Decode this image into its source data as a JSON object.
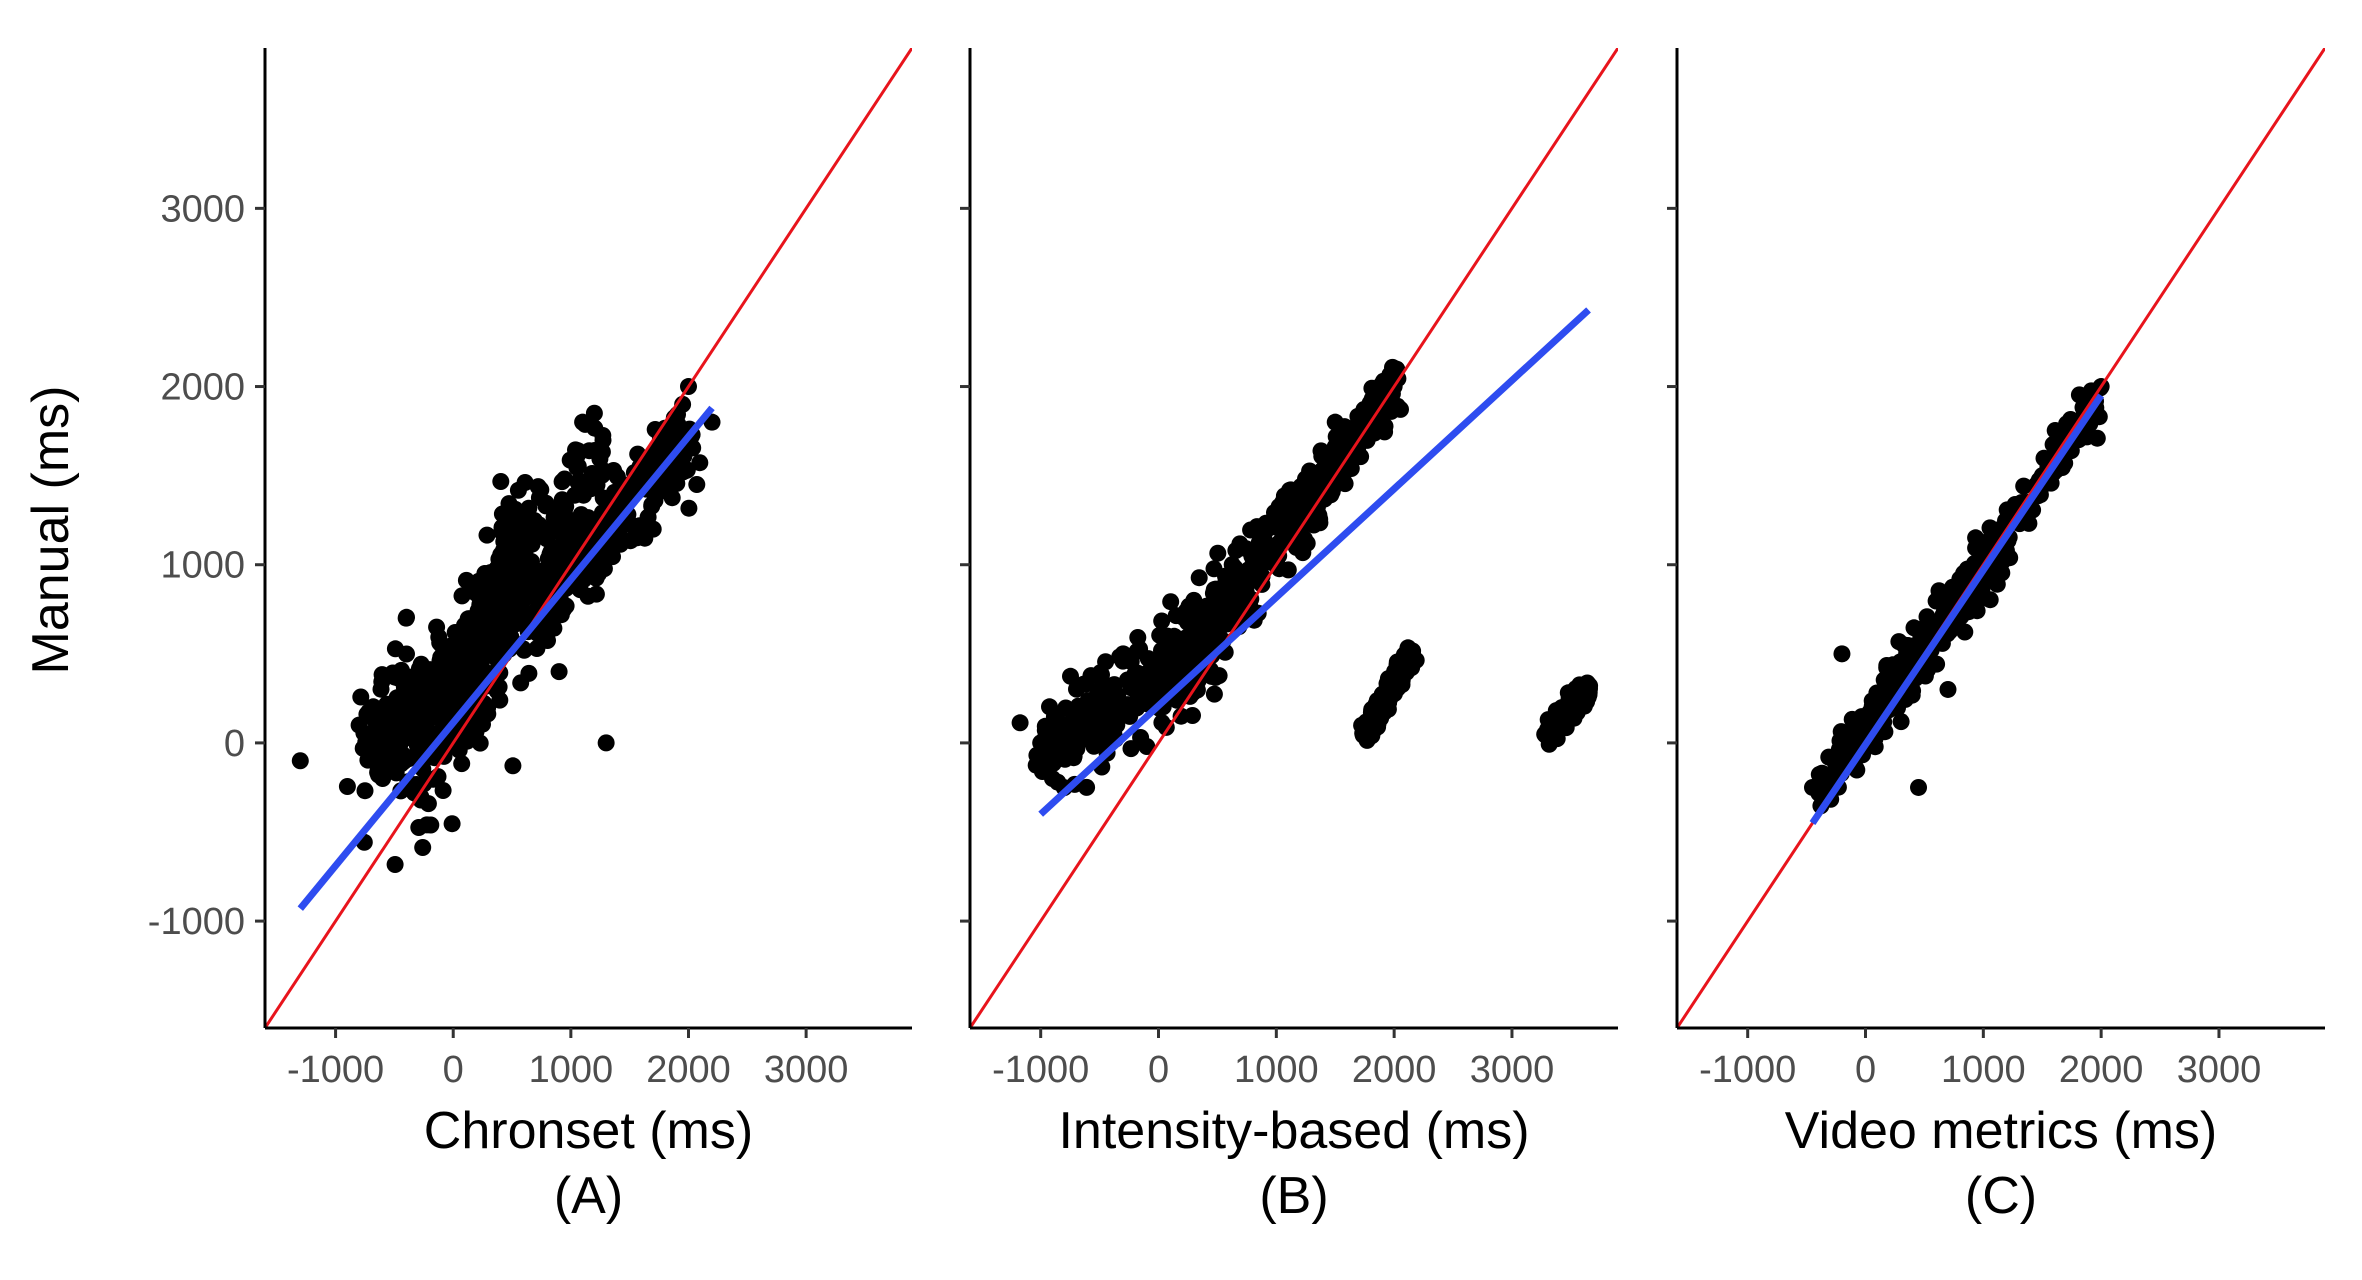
{
  "y_axis_label": "Manual (ms)",
  "colors": {
    "points": "#000000",
    "fit_line": "#2e4cf0",
    "identity_line": "#e8141c",
    "axis": "#000000",
    "tick_text": "#4d4d4d"
  },
  "chart_data": [
    {
      "type": "scatter",
      "panel": "(A)",
      "xlabel": "Chronset (ms)",
      "ylabel": "Manual (ms)",
      "xlim": [
        -1600,
        3900
      ],
      "ylim": [
        -1600,
        3900
      ],
      "xticks": [
        -1000,
        0,
        1000,
        2000,
        3000
      ],
      "yticks": [
        -1000,
        0,
        1000,
        2000,
        3000
      ],
      "xtick_labels": [
        "-1000",
        "0",
        "1000",
        "2000",
        "3000"
      ],
      "ytick_labels": [
        "-1000",
        "0",
        "1000",
        "2000",
        "3000"
      ],
      "identity_line": true,
      "fit_line": {
        "x": [
          -1300,
          2200
        ],
        "y": [
          -930,
          1880
        ]
      },
      "clusters": [
        {
          "x1": -350,
          "y1": -150,
          "x2": 1300,
          "y2": 1500,
          "spread": 220
        },
        {
          "x1": 0,
          "y1": 150,
          "x2": 600,
          "y2": 1200,
          "spread": 130
        },
        {
          "x1": 600,
          "y1": 700,
          "x2": 2000,
          "y2": 1700,
          "spread": 110
        },
        {
          "x1": -700,
          "y1": 0,
          "x2": 100,
          "y2": 400,
          "spread": 150
        }
      ],
      "points": [
        [
          -1300,
          -100
        ],
        [
          -800,
          100
        ],
        [
          -700,
          50
        ],
        [
          -600,
          -200
        ],
        [
          1300,
          0
        ],
        [
          2200,
          1800
        ],
        [
          2000,
          2000
        ],
        [
          1200,
          1850
        ],
        [
          1100,
          1800
        ],
        [
          900,
          400
        ],
        [
          -250,
          -230
        ],
        [
          -400,
          700
        ],
        [
          1500,
          1450
        ],
        [
          1950,
          1900
        ],
        [
          1700,
          1200
        ]
      ]
    },
    {
      "type": "scatter",
      "panel": "(B)",
      "xlabel": "Intensity-based (ms)",
      "ylabel": "Manual (ms)",
      "xlim": [
        -1600,
        3900
      ],
      "ylim": [
        -1600,
        3900
      ],
      "xticks": [
        -1000,
        0,
        1000,
        2000,
        3000
      ],
      "yticks": [
        -1000,
        0,
        1000,
        2000,
        3000
      ],
      "xtick_labels": [
        "-1000",
        "0",
        "1000",
        "2000",
        "3000"
      ],
      "ytick_labels": [],
      "identity_line": true,
      "fit_line": {
        "x": [
          -1000,
          3650
        ],
        "y": [
          -400,
          2430
        ]
      },
      "clusters": [
        {
          "x1": -1000,
          "y1": -100,
          "x2": 500,
          "y2": 600,
          "spread": 130
        },
        {
          "x1": 0,
          "y1": 300,
          "x2": 1300,
          "y2": 1400,
          "spread": 110
        },
        {
          "x1": 1100,
          "y1": 1200,
          "x2": 2000,
          "y2": 2000,
          "spread": 70
        },
        {
          "x1": 1750,
          "y1": 50,
          "x2": 2150,
          "y2": 500,
          "spread": 30
        },
        {
          "x1": 3300,
          "y1": 50,
          "x2": 3650,
          "y2": 300,
          "spread": 30
        }
      ],
      "points": [
        [
          -1000,
          0
        ],
        [
          -900,
          -200
        ],
        [
          1700,
          1800
        ],
        [
          1900,
          1950
        ],
        [
          2000,
          2000
        ],
        [
          -300,
          500
        ],
        [
          300,
          800
        ],
        [
          1500,
          1800
        ]
      ]
    },
    {
      "type": "scatter",
      "panel": "(C)",
      "xlabel": "Video metrics (ms)",
      "ylabel": "Manual (ms)",
      "xlim": [
        -1600,
        3900
      ],
      "ylim": [
        -1600,
        3900
      ],
      "xticks": [
        -1000,
        0,
        1000,
        2000,
        3000
      ],
      "yticks": [
        -1000,
        0,
        1000,
        2000,
        3000
      ],
      "xtick_labels": [
        "-1000",
        "0",
        "1000",
        "2000",
        "3000"
      ],
      "ytick_labels": [],
      "identity_line": true,
      "fit_line": {
        "x": [
          -450,
          2000
        ],
        "y": [
          -450,
          1950
        ]
      },
      "clusters": [
        {
          "x1": -400,
          "y1": -300,
          "x2": 2000,
          "y2": 1950,
          "spread": 60
        },
        {
          "x1": -100,
          "y1": 0,
          "x2": 1200,
          "y2": 1150,
          "spread": 70
        }
      ],
      "points": [
        [
          -450,
          -250
        ],
        [
          450,
          -250
        ],
        [
          700,
          300
        ],
        [
          1000,
          1050
        ],
        [
          -200,
          500
        ],
        [
          2000,
          2000
        ]
      ]
    }
  ]
}
